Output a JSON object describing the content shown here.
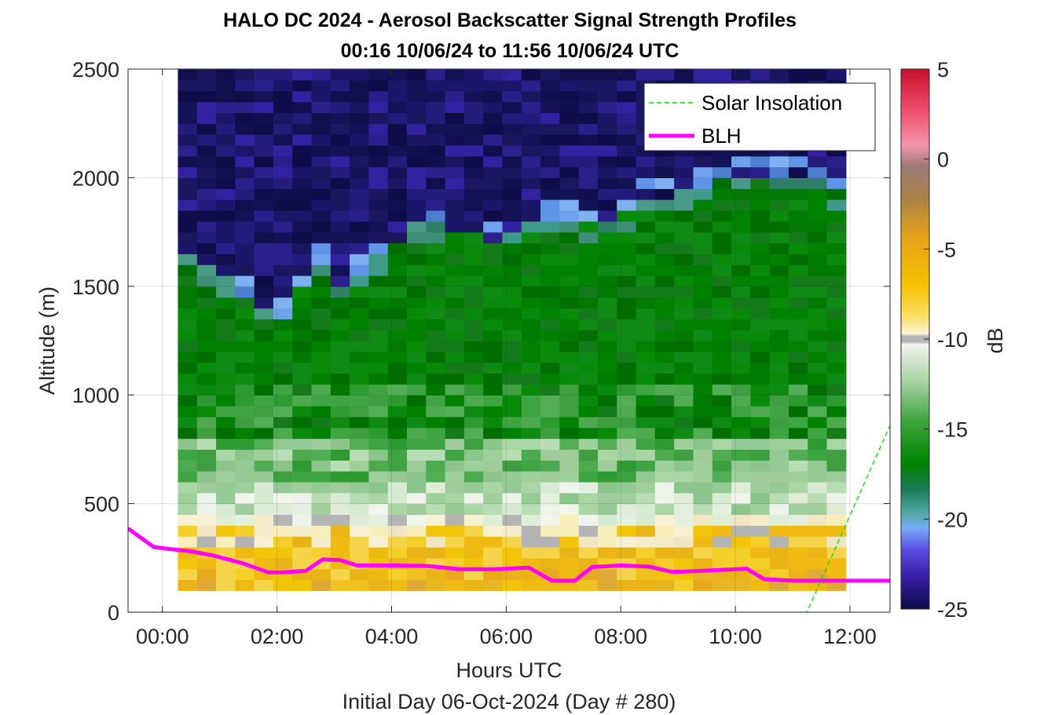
{
  "chart_data": {
    "type": "heatmap",
    "title_line1": "HALO DC 2024 - Aerosol Backscatter Signal Strength Profiles",
    "title_line2": "00:16 10/06/24 to 11:56 10/06/24  UTC",
    "xlabel": "Hours UTC",
    "xlabel2": "Initial Day 06-Oct-2024 (Day # 280)",
    "ylabel": "Altitude (m)",
    "xlim": [
      -0.6,
      12.7
    ],
    "ylim": [
      0,
      2500
    ],
    "xticks": [
      {
        "value": 0,
        "label": "00:00"
      },
      {
        "value": 2,
        "label": "02:00"
      },
      {
        "value": 4,
        "label": "04:00"
      },
      {
        "value": 6,
        "label": "06:00"
      },
      {
        "value": 8,
        "label": "08:00"
      },
      {
        "value": 10,
        "label": "10:00"
      },
      {
        "value": 12,
        "label": "12:00"
      }
    ],
    "yticks": [
      {
        "value": 0,
        "label": "0"
      },
      {
        "value": 500,
        "label": "500"
      },
      {
        "value": 1000,
        "label": "1000"
      },
      {
        "value": 1500,
        "label": "1500"
      },
      {
        "value": 2000,
        "label": "2000"
      },
      {
        "value": 2500,
        "label": "2500"
      }
    ],
    "grid": true,
    "heatmap": {
      "x_start": 0.27,
      "x_end": 11.93,
      "y_bottom": 100,
      "y_top": 2500,
      "columns": 35,
      "rows": 48,
      "note": "gridded signal strength (dB); boundary between green aerosol layer and purple clean air",
      "layer_top_m": [
        1620,
        1580,
        1510,
        1440,
        1390,
        1350,
        1500,
        1590,
        1480,
        1540,
        1630,
        1700,
        1760,
        1760,
        1740,
        1730,
        1700,
        1750,
        1780,
        1800,
        1800,
        1780,
        1800,
        1830,
        1900,
        1900,
        1930,
        1950,
        1970,
        1990,
        2000,
        2000,
        1990,
        1960,
        1920
      ]
    },
    "colorbar": {
      "label": "dB",
      "range": [
        -25,
        5
      ],
      "ticks": [
        5,
        0,
        -5,
        -10,
        -15,
        -20,
        -25
      ]
    },
    "series": [
      {
        "name": "BLH",
        "color": "#ff00ff",
        "x": [
          -0.6,
          -0.15,
          0.15,
          0.5,
          0.9,
          1.4,
          1.85,
          2.1,
          2.5,
          2.8,
          3.1,
          3.4,
          4.0,
          4.6,
          5.2,
          5.8,
          6.4,
          6.8,
          7.2,
          7.5,
          8.0,
          8.5,
          8.9,
          9.4,
          9.8,
          10.2,
          10.5,
          11.0,
          11.5,
          12.0,
          12.7
        ],
        "y": [
          385,
          300,
          290,
          280,
          260,
          225,
          183,
          183,
          190,
          243,
          240,
          215,
          215,
          213,
          198,
          198,
          205,
          145,
          145,
          208,
          215,
          210,
          185,
          190,
          195,
          200,
          152,
          145,
          145,
          145,
          145
        ]
      },
      {
        "name": "Solar Insolation",
        "color": "#00dd00",
        "x": [
          -0.6,
          11.25,
          12.7
        ],
        "y": [
          0,
          0,
          860
        ]
      }
    ],
    "legend": {
      "placement": "top-right"
    }
  }
}
